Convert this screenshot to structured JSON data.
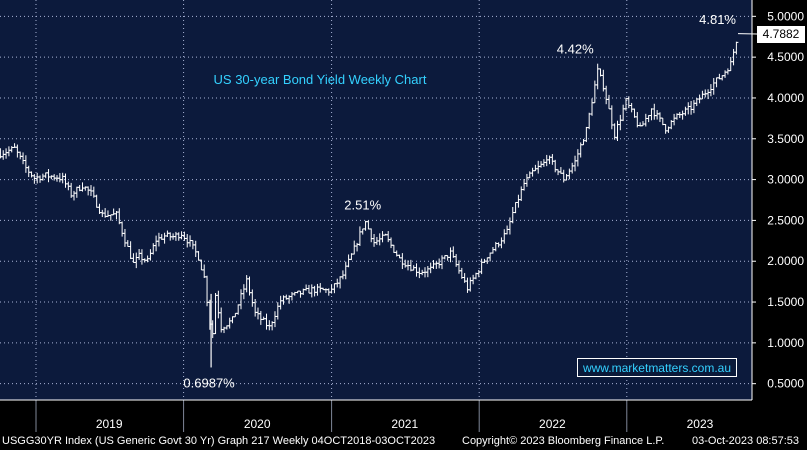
{
  "chart_data": {
    "type": "line",
    "style": "ohlc-bars",
    "title": "US 30-year Bond Yield Weekly Chart",
    "xlabel": "",
    "ylabel": "",
    "ylim": [
      0.3,
      5.2
    ],
    "grid": true,
    "y_ticks": [
      "0.5000",
      "1.0000",
      "1.5000",
      "2.0000",
      "2.5000",
      "3.0000",
      "3.5000",
      "4.0000",
      "4.5000",
      "5.0000"
    ],
    "y_tick_values": [
      0.5,
      1.0,
      1.5,
      2.0,
      2.5,
      3.0,
      3.5,
      4.0,
      4.5,
      5.0
    ],
    "x_ticks": [
      "2019",
      "2020",
      "2021",
      "2022",
      "2023"
    ],
    "x_range": [
      "2018-10-04",
      "2023-10-03"
    ],
    "year_boundaries": [
      "2019-01-01",
      "2020-01-01",
      "2021-01-01",
      "2022-01-01",
      "2023-01-01"
    ],
    "year_label_dates": [
      "2019-07-01",
      "2020-07-01",
      "2021-07-01",
      "2022-07-01",
      "2023-07-01"
    ],
    "series": [
      {
        "name": "USGG30YR Index",
        "points": [
          [
            "2018-10-05",
            3.32
          ],
          [
            "2018-11-09",
            3.38
          ],
          [
            "2018-12-07",
            3.14
          ],
          [
            "2018-12-28",
            3.02
          ],
          [
            "2019-01-25",
            3.05
          ],
          [
            "2019-02-22",
            3.03
          ],
          [
            "2019-03-08",
            3.01
          ],
          [
            "2019-03-29",
            2.82
          ],
          [
            "2019-04-26",
            2.93
          ],
          [
            "2019-05-17",
            2.83
          ],
          [
            "2019-06-14",
            2.57
          ],
          [
            "2019-07-19",
            2.57
          ],
          [
            "2019-08-09",
            2.26
          ],
          [
            "2019-08-30",
            1.97
          ],
          [
            "2019-09-13",
            2.06
          ],
          [
            "2019-10-04",
            2.0
          ],
          [
            "2019-10-25",
            2.26
          ],
          [
            "2019-11-15",
            2.31
          ],
          [
            "2019-12-06",
            2.3
          ],
          [
            "2019-12-27",
            2.34
          ],
          [
            "2020-01-17",
            2.22
          ],
          [
            "2020-02-07",
            2.05
          ],
          [
            "2020-02-21",
            1.8
          ],
          [
            "2020-03-06",
            1.25
          ],
          [
            "2020-03-09",
            0.85
          ],
          [
            "2020-03-20",
            1.59
          ],
          [
            "2020-04-03",
            1.19
          ],
          [
            "2020-05-01",
            1.28
          ],
          [
            "2020-06-05",
            1.76
          ],
          [
            "2020-06-26",
            1.36
          ],
          [
            "2020-07-31",
            1.19
          ],
          [
            "2020-08-28",
            1.52
          ],
          [
            "2020-10-09",
            1.6
          ],
          [
            "2020-11-13",
            1.65
          ],
          [
            "2020-12-31",
            1.64
          ],
          [
            "2021-01-29",
            1.83
          ],
          [
            "2021-02-26",
            2.15
          ],
          [
            "2021-03-19",
            2.42
          ],
          [
            "2021-03-26",
            2.48
          ],
          [
            "2021-04-16",
            2.23
          ],
          [
            "2021-05-14",
            2.3
          ],
          [
            "2021-06-18",
            2.03
          ],
          [
            "2021-07-16",
            1.93
          ],
          [
            "2021-08-06",
            1.87
          ],
          [
            "2021-09-03",
            1.9
          ],
          [
            "2021-10-22",
            2.1
          ],
          [
            "2021-11-12",
            1.88
          ],
          [
            "2021-12-03",
            1.67
          ],
          [
            "2021-12-31",
            1.9
          ],
          [
            "2022-01-21",
            2.07
          ],
          [
            "2022-02-18",
            2.23
          ],
          [
            "2022-03-11",
            2.36
          ],
          [
            "2022-03-25",
            2.59
          ],
          [
            "2022-04-22",
            2.95
          ],
          [
            "2022-05-13",
            3.09
          ],
          [
            "2022-06-10",
            3.2
          ],
          [
            "2022-06-17",
            3.28
          ],
          [
            "2022-07-29",
            3.01
          ],
          [
            "2022-08-26",
            3.22
          ],
          [
            "2022-09-23",
            3.61
          ],
          [
            "2022-10-21",
            4.33
          ],
          [
            "2022-11-04",
            4.15
          ],
          [
            "2022-12-02",
            3.55
          ],
          [
            "2022-12-30",
            3.96
          ],
          [
            "2023-02-03",
            3.62
          ],
          [
            "2023-03-03",
            3.87
          ],
          [
            "2023-04-07",
            3.63
          ],
          [
            "2023-05-05",
            3.77
          ],
          [
            "2023-06-09",
            3.88
          ],
          [
            "2023-07-07",
            4.03
          ],
          [
            "2023-08-04",
            4.18
          ],
          [
            "2023-08-25",
            4.28
          ],
          [
            "2023-09-15",
            4.42
          ],
          [
            "2023-09-29",
            4.71
          ],
          [
            "2023-10-03",
            4.79
          ]
        ]
      }
    ],
    "annotations": [
      {
        "text": "4.81%",
        "date": "2023-10-03",
        "value": 4.81
      },
      {
        "text": "4.42%",
        "date": "2022-10-21",
        "value": 4.42
      },
      {
        "text": "2.51%",
        "date": "2021-03-19",
        "value": 2.51
      },
      {
        "text": "0.6987%",
        "date": "2020-03-09",
        "value": 0.6987
      }
    ],
    "last_value_label": "4.7882",
    "last_value": 4.7882,
    "colors": {
      "background": "#0c1a3c",
      "grid": "#a9b4d6",
      "series": "#ffffff",
      "title": "#34d1ff",
      "axis_text": "#ffffff"
    }
  },
  "watermark": "www.marketmatters.com.au",
  "footer": {
    "left": "USGG30YR Index (US Generic Govt 30 Yr) Graph 217  Weekly 04OCT2018-03OCT2023",
    "middle": "Copyright© 2023 Bloomberg Finance L.P.",
    "right": "03-Oct-2023 08:57:53"
  }
}
